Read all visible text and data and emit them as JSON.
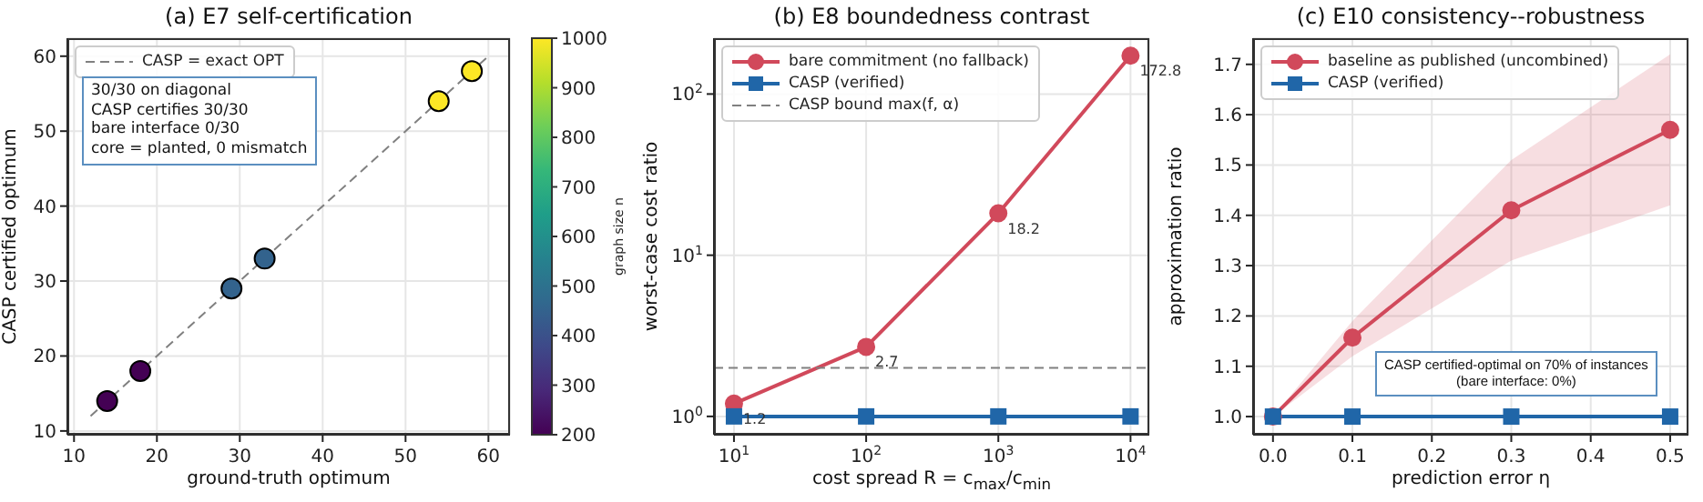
{
  "chart_data": [
    {
      "type": "scatter",
      "title": "(a) E7 self-certification",
      "xlabel": "ground-truth optimum",
      "ylabel": "CASP certified optimum",
      "clabel": "graph size n",
      "xlim": [
        9.2,
        62.6
      ],
      "ylim": [
        9.5,
        62.4
      ],
      "xticks": [
        10,
        20,
        30,
        40,
        50,
        60
      ],
      "yticks": [
        10,
        20,
        30,
        40,
        50,
        60
      ],
      "clim": [
        200,
        1000
      ],
      "cticks": [
        200,
        300,
        400,
        500,
        600,
        700,
        800,
        900,
        1000
      ],
      "grid": true,
      "legend": "top left",
      "marker": "circle",
      "series": [
        {
          "type": "line",
          "name": "CASP = exact OPT",
          "color": "#808080",
          "line_style": "dashed",
          "marker": "none",
          "x": [
            12,
            60
          ],
          "values": [
            12,
            60
          ]
        },
        {
          "x": [
            14,
            18,
            29,
            33,
            54,
            58
          ],
          "values": [
            14,
            18,
            29,
            33,
            54,
            58
          ],
          "colors": [
            "#440154",
            "#440154",
            "#33638d",
            "#33638d",
            "#fde725",
            "#fde725"
          ]
        }
      ],
      "annotations": [
        "30/30 on diagonal",
        "CASP certifies 30/30",
        "bare interface 0/30",
        "core = planted, 0 mismatch"
      ]
    },
    {
      "type": "line",
      "title": "(b) E8 boundedness contrast",
      "xlabel": "cost spread R = c$_{max}$/c$_{min}$",
      "ylabel": "worst-case cost ratio",
      "log": "xy",
      "xlim": [
        7.06,
        13870
      ],
      "ylim": [
        0.77,
        222
      ],
      "xticks": [
        {
          "value": 10,
          "label": "10$^{1}$"
        },
        {
          "value": 100,
          "label": "10$^{2}$"
        },
        {
          "value": 1000,
          "label": "10$^{3}$"
        },
        {
          "value": 10000,
          "label": "10$^{4}$"
        }
      ],
      "yticks": [
        {
          "value": 1,
          "label": "10$^{0}$"
        },
        {
          "value": 10,
          "label": "10$^{1}$"
        },
        {
          "value": 100,
          "label": "10$^{2}$"
        }
      ],
      "grid": true,
      "legend": "top left",
      "x": [
        10,
        100,
        1000,
        10000
      ],
      "series": [
        {
          "name": "bare commitment (no fallback)",
          "color": "#d1495b",
          "marker": "circle",
          "values": [
            1.2,
            2.7,
            18.2,
            172.8
          ],
          "value_labels": [
            "1.2",
            "2.7",
            "18.2",
            "172.8"
          ]
        },
        {
          "name": "CASP (verified)",
          "color": "#2066a8",
          "marker": "square",
          "values": [
            1,
            1,
            1,
            1
          ]
        }
      ],
      "ref_lines": [
        {
          "axis": "y",
          "value": 2,
          "label": "CASP bound max(f, α)",
          "color": "#808080",
          "line_style": "dashed"
        }
      ]
    },
    {
      "type": "line",
      "title": "(c) E10 consistency--robustness",
      "xlabel": "prediction error η",
      "ylabel": "approximation ratio",
      "xlim": [
        -0.025,
        0.523
      ],
      "ylim": [
        0.964,
        1.752
      ],
      "xticks": [
        {
          "value": 0,
          "label": "0.0"
        },
        0.1,
        0.2,
        0.3,
        0.4,
        0.5
      ],
      "yticks": [
        {
          "value": 1,
          "label": "1.0"
        },
        1.1,
        1.2,
        1.3,
        1.4,
        1.5,
        1.6,
        1.7
      ],
      "grid": true,
      "legend": "top left",
      "x": [
        0,
        0.1,
        0.3,
        0.5
      ],
      "series": [
        {
          "name": "baseline as published (uncombined)",
          "color": "#d1495b",
          "marker": "circle",
          "values": [
            1.0,
            1.157,
            1.41,
            1.57
          ],
          "lower": [
            1.0,
            1.12,
            1.31,
            1.42
          ],
          "upper": [
            1.0,
            1.19,
            1.51,
            1.72
          ]
        },
        {
          "name": "CASP (verified)",
          "color": "#2066a8",
          "marker": "square",
          "values": [
            1,
            1,
            1,
            1
          ]
        }
      ],
      "annotations": [
        "CASP certified-optimal on 70% of instances",
        "(bare interface: 0%)"
      ]
    }
  ]
}
